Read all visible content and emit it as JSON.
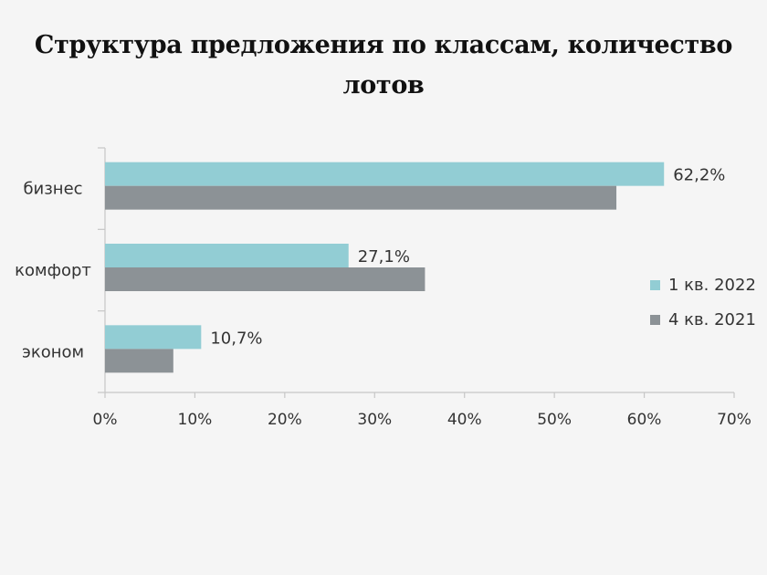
{
  "title": "Структура предложения по классам, количество лотов",
  "colors": {
    "series_1": "#92cdd4",
    "series_2": "#8c9296",
    "axis": "#c6c6c6"
  },
  "chart_data": {
    "type": "bar",
    "orientation": "horizontal",
    "title": "Структура предложения по классам, количество лотов",
    "categories": [
      "бизнес",
      "комфорт",
      "эконом"
    ],
    "series": [
      {
        "name": "1 кв. 2022",
        "values": [
          62.2,
          27.1,
          10.7
        ],
        "labels": [
          "62,2%",
          "27,1%",
          "10,7%"
        ]
      },
      {
        "name": "4 кв. 2021",
        "values": [
          56.9,
          35.6,
          7.6
        ]
      }
    ],
    "xlim": [
      0,
      70
    ],
    "x_ticks": [
      0,
      10,
      20,
      30,
      40,
      50,
      60,
      70
    ],
    "x_tick_labels": [
      "0%",
      "10%",
      "20%",
      "30%",
      "40%",
      "50%",
      "60%",
      "70%"
    ],
    "grid": false,
    "legend": "right"
  }
}
